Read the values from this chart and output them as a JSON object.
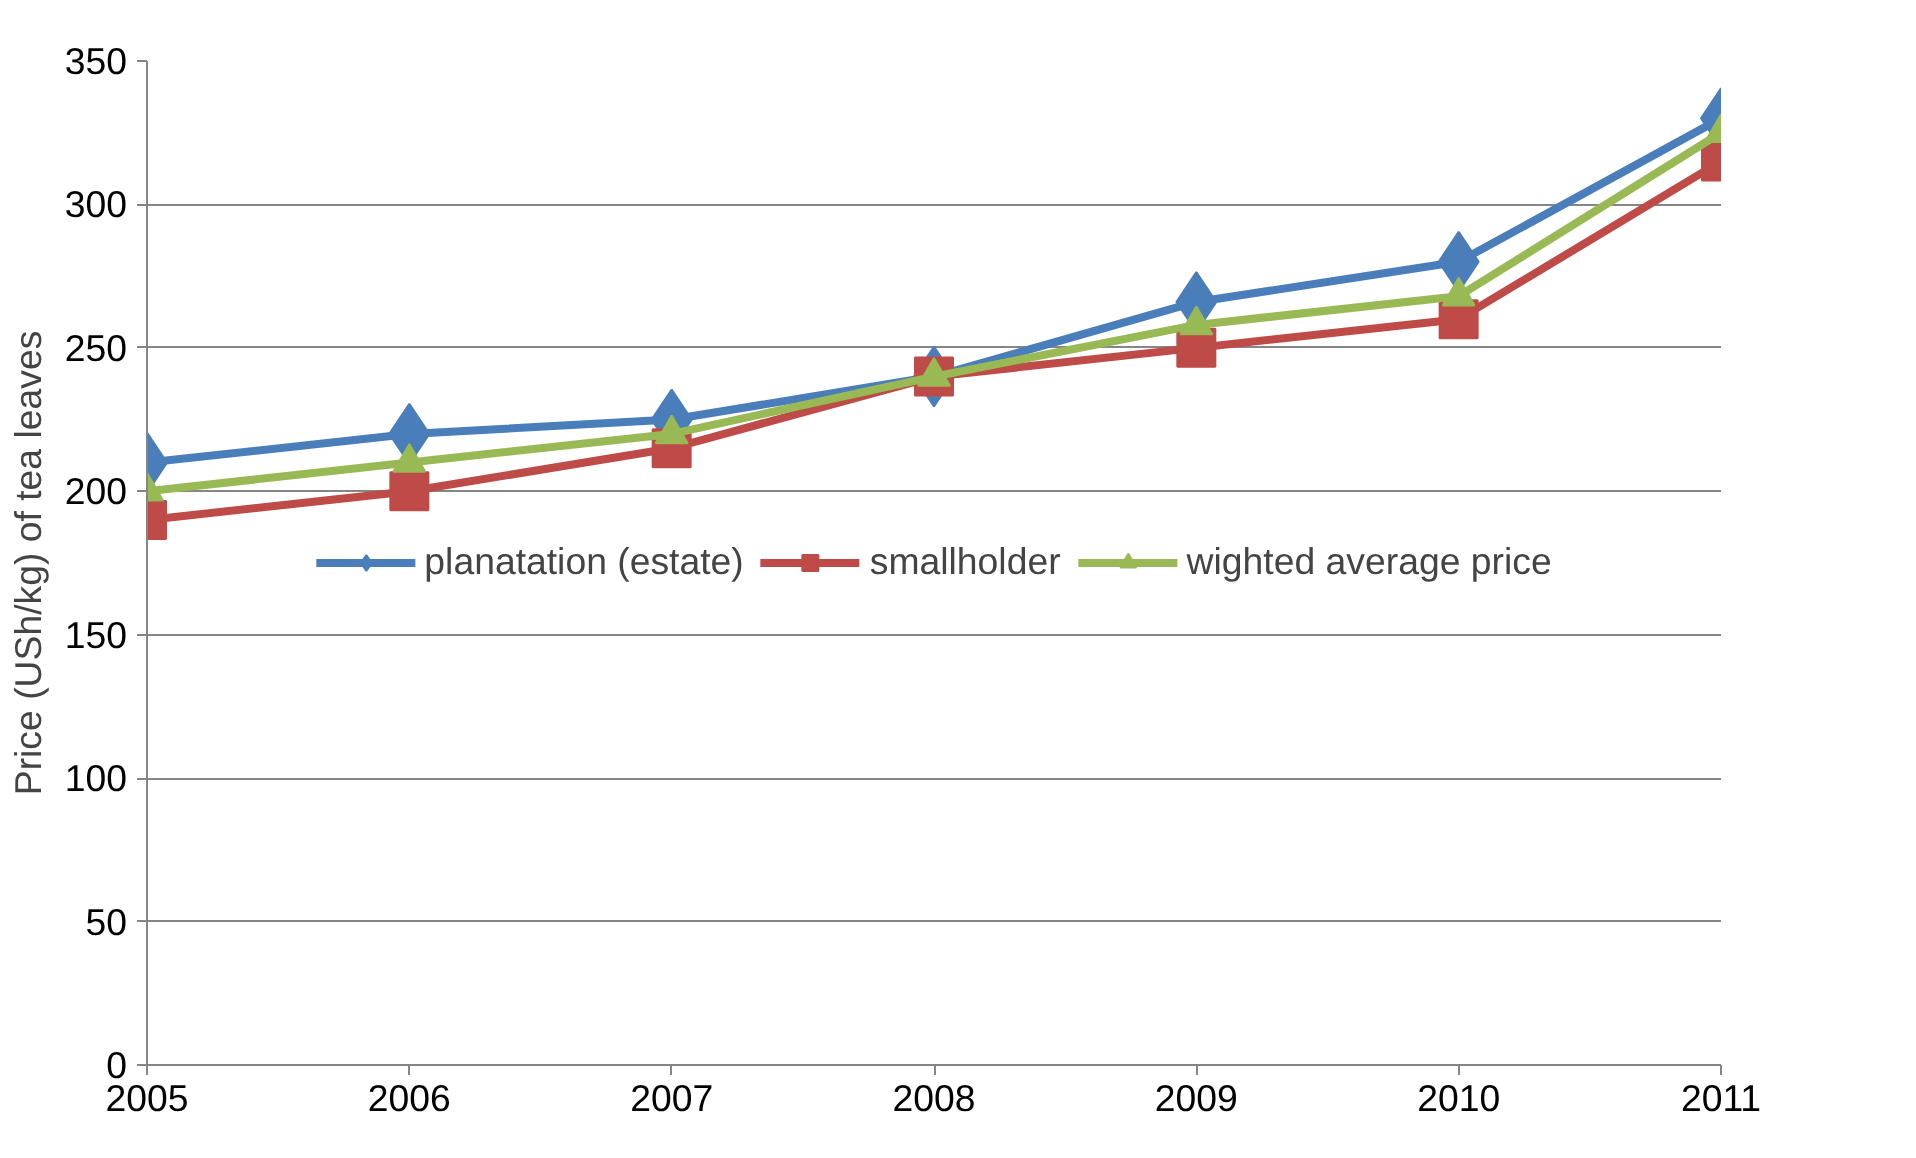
{
  "chart_data": {
    "type": "line",
    "ylabel": "Price (USh/kg) of tea leaves",
    "x": [
      2005,
      2006,
      2007,
      2008,
      2009,
      2010,
      2011
    ],
    "xlim": [
      2005,
      2011
    ],
    "xticks": [
      2005,
      2006,
      2007,
      2008,
      2009,
      2010,
      2011
    ],
    "ylim": [
      0,
      350
    ],
    "yticks": [
      0,
      50,
      100,
      150,
      200,
      250,
      300,
      350
    ],
    "grid": "y",
    "legend": "center",
    "line_style": "solid",
    "series": [
      {
        "name": "planatation (estate)",
        "color": "#4a7ebb",
        "marker": "diamond",
        "values": [
          210,
          220,
          225,
          240,
          266,
          280,
          330
        ]
      },
      {
        "name": "smallholder",
        "color": "#be4b48",
        "marker": "square",
        "values": [
          190,
          200,
          215,
          240,
          250,
          260,
          315
        ]
      },
      {
        "name": "wighted average price",
        "color": "#98b954",
        "marker": "triangle",
        "values": [
          200,
          210,
          220,
          240,
          258,
          268,
          325
        ]
      }
    ]
  }
}
